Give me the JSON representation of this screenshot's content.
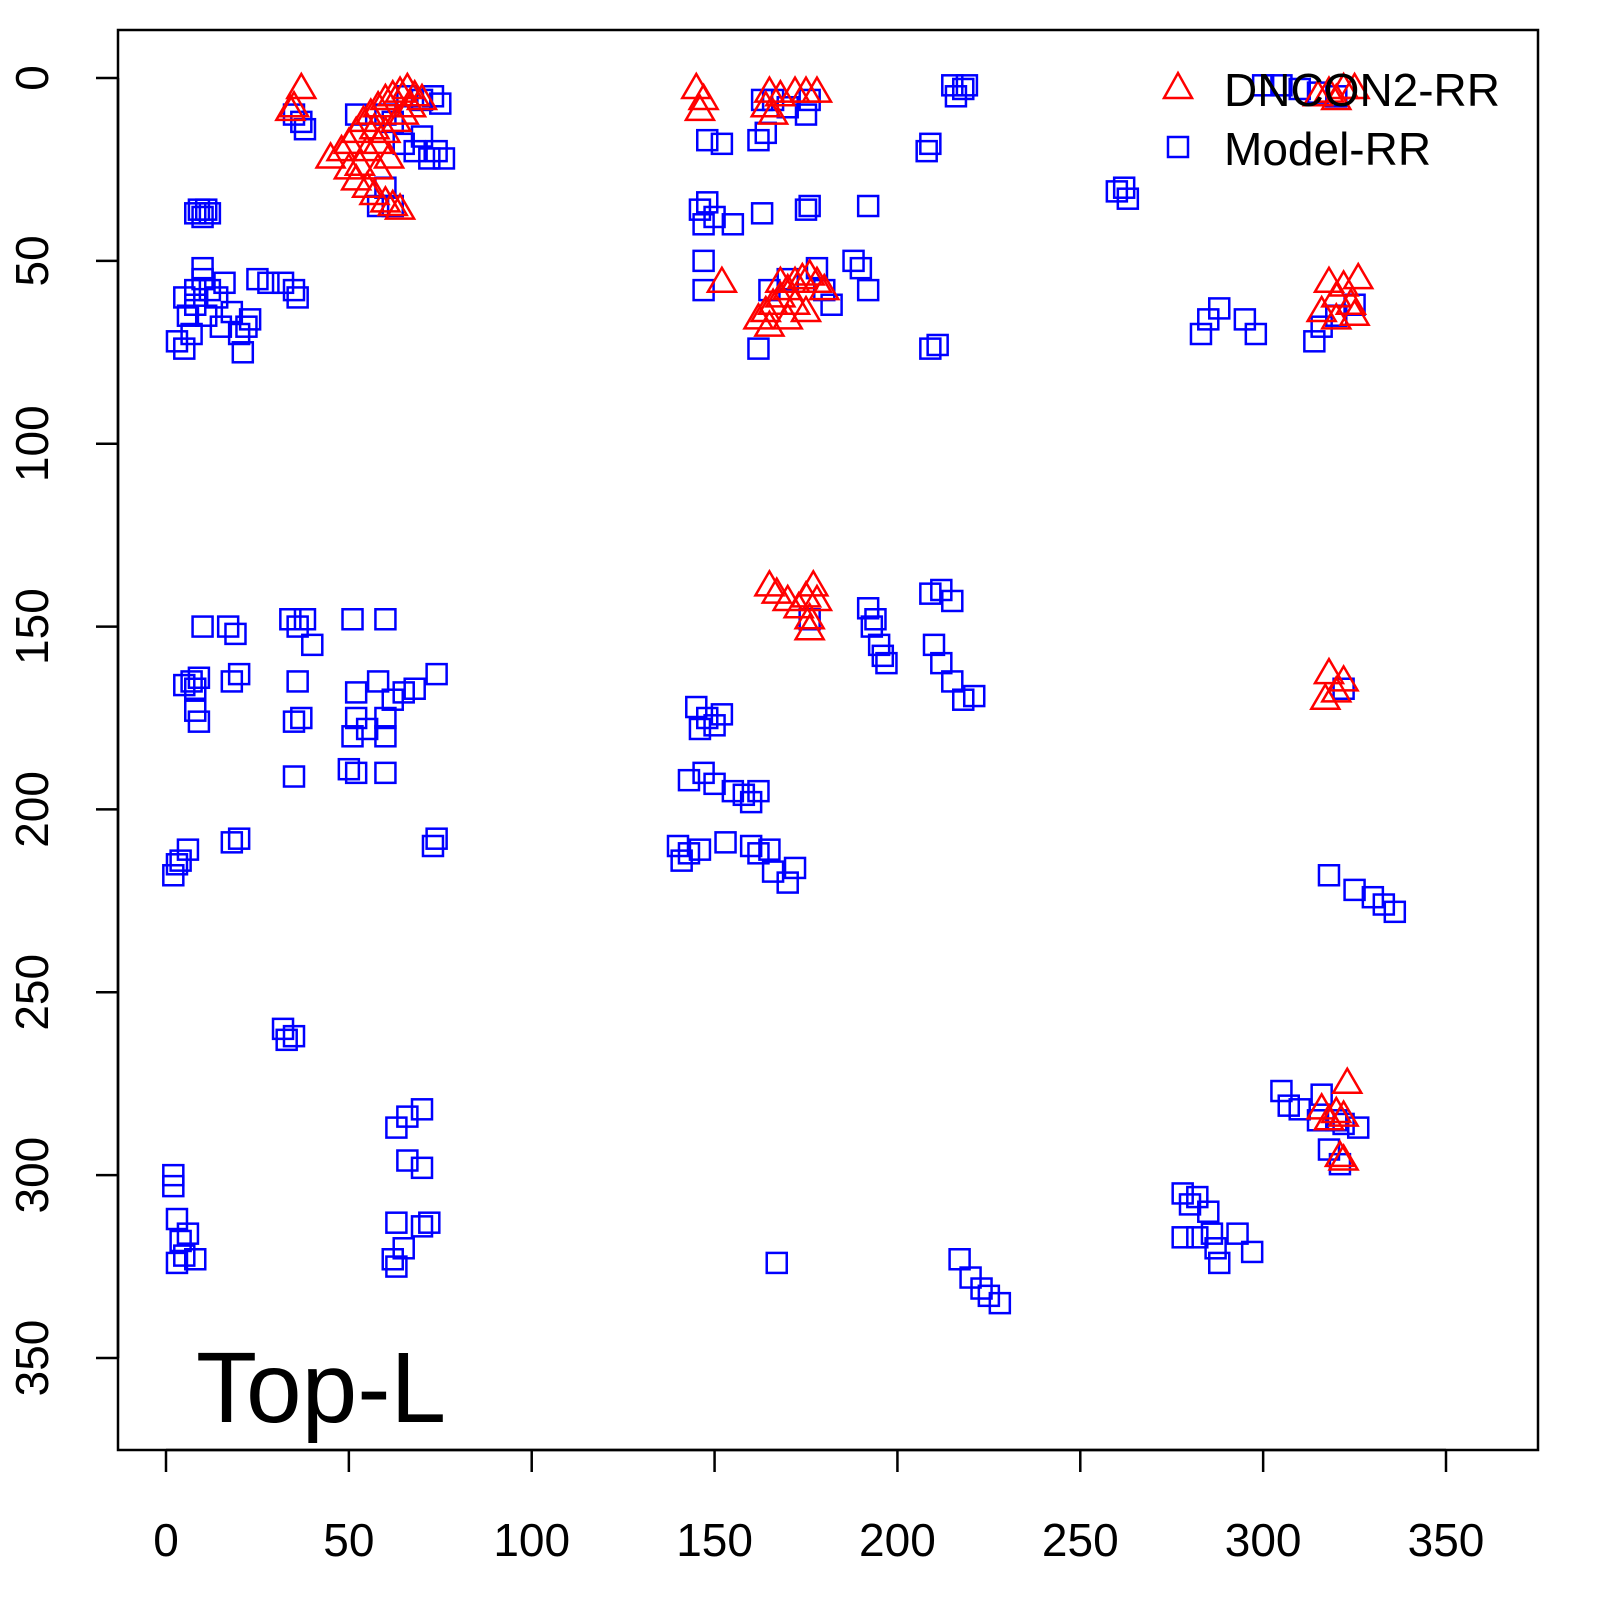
{
  "chart_data": {
    "type": "scatter",
    "title": "",
    "annotation": "Top-L",
    "xlabel": "",
    "ylabel": "",
    "xlim": [
      -13,
      375
    ],
    "ylim": [
      -13,
      375
    ],
    "y_inverted": true,
    "grid": false,
    "legend": {
      "placement": "top-right",
      "entries": [
        "DNCON2-RR",
        "Model-RR"
      ]
    },
    "xticks": [
      0,
      50,
      100,
      150,
      200,
      250,
      300,
      350
    ],
    "yticks": [
      0,
      50,
      100,
      150,
      200,
      250,
      300,
      350
    ],
    "colors": {
      "DNCON2-RR": "#ff0000",
      "Model-RR": "#0000ff"
    },
    "series": [
      {
        "name": "Model-RR",
        "marker": "square",
        "points": [
          [
            35,
            10
          ],
          [
            37,
            12
          ],
          [
            38,
            14
          ],
          [
            60,
            10
          ],
          [
            62,
            12
          ],
          [
            66,
            5
          ],
          [
            70,
            6
          ],
          [
            73,
            5
          ],
          [
            75,
            7
          ],
          [
            65,
            18
          ],
          [
            68,
            20
          ],
          [
            72,
            22
          ],
          [
            74,
            20
          ],
          [
            76,
            22
          ],
          [
            70,
            16
          ],
          [
            60,
            30
          ],
          [
            58,
            35
          ],
          [
            62,
            35
          ],
          [
            52,
            10
          ],
          [
            9,
            36
          ],
          [
            10,
            38
          ],
          [
            11,
            36
          ],
          [
            12,
            37
          ],
          [
            8,
            37
          ],
          [
            5,
            60
          ],
          [
            6,
            65
          ],
          [
            7,
            70
          ],
          [
            8,
            62
          ],
          [
            10,
            55
          ],
          [
            12,
            58
          ],
          [
            14,
            60
          ],
          [
            16,
            56
          ],
          [
            18,
            64
          ],
          [
            20,
            70
          ],
          [
            21,
            75
          ],
          [
            22,
            68
          ],
          [
            3,
            72
          ],
          [
            5,
            74
          ],
          [
            10,
            52
          ],
          [
            15,
            68
          ],
          [
            23,
            66
          ],
          [
            25,
            55
          ],
          [
            28,
            56
          ],
          [
            32,
            56
          ],
          [
            35,
            58
          ],
          [
            36,
            60
          ],
          [
            8,
            58
          ],
          [
            11,
            65
          ],
          [
            146,
            36
          ],
          [
            147,
            40
          ],
          [
            148,
            34
          ],
          [
            150,
            38
          ],
          [
            155,
            40
          ],
          [
            163,
            37
          ],
          [
            175,
            36
          ],
          [
            176,
            35
          ],
          [
            192,
            35
          ],
          [
            147,
            50
          ],
          [
            147,
            58
          ],
          [
            148,
            17
          ],
          [
            152,
            18
          ],
          [
            162,
            17
          ],
          [
            164,
            15
          ],
          [
            163,
            6
          ],
          [
            166,
            6
          ],
          [
            170,
            8
          ],
          [
            175,
            10
          ],
          [
            176,
            6
          ],
          [
            162,
            74
          ],
          [
            165,
            58
          ],
          [
            170,
            55
          ],
          [
            178,
            52
          ],
          [
            180,
            58
          ],
          [
            182,
            62
          ],
          [
            188,
            50
          ],
          [
            190,
            52
          ],
          [
            192,
            58
          ],
          [
            208,
            20
          ],
          [
            209,
            18
          ],
          [
            209,
            74
          ],
          [
            211,
            73
          ],
          [
            216,
            5
          ],
          [
            218,
            3
          ],
          [
            215,
            2
          ],
          [
            219,
            2
          ],
          [
            262,
            30
          ],
          [
            263,
            33
          ],
          [
            260,
            31
          ],
          [
            300,
            2
          ],
          [
            305,
            2
          ],
          [
            310,
            3
          ],
          [
            315,
            4
          ],
          [
            320,
            5
          ],
          [
            283,
            70
          ],
          [
            285,
            66
          ],
          [
            288,
            63
          ],
          [
            295,
            66
          ],
          [
            298,
            70
          ],
          [
            314,
            72
          ],
          [
            316,
            68
          ],
          [
            320,
            65
          ],
          [
            325,
            62
          ],
          [
            7,
            165
          ],
          [
            8,
            167
          ],
          [
            9,
            164
          ],
          [
            5,
            166
          ],
          [
            8,
            173
          ],
          [
            9,
            176
          ],
          [
            10,
            150
          ],
          [
            17,
            150
          ],
          [
            19,
            152
          ],
          [
            18,
            165
          ],
          [
            20,
            163
          ],
          [
            34,
            148
          ],
          [
            36,
            150
          ],
          [
            38,
            148
          ],
          [
            40,
            155
          ],
          [
            35,
            176
          ],
          [
            37,
            175
          ],
          [
            36,
            165
          ],
          [
            51,
            148
          ],
          [
            60,
            148
          ],
          [
            52,
            168
          ],
          [
            52,
            175
          ],
          [
            51,
            180
          ],
          [
            55,
            178
          ],
          [
            60,
            175
          ],
          [
            62,
            170
          ],
          [
            65,
            168
          ],
          [
            68,
            167
          ],
          [
            60,
            180
          ],
          [
            58,
            165
          ],
          [
            74,
            163
          ],
          [
            50,
            189
          ],
          [
            52,
            190
          ],
          [
            60,
            190
          ],
          [
            35,
            191
          ],
          [
            73,
            210
          ],
          [
            74,
            208
          ],
          [
            18,
            209
          ],
          [
            20,
            208
          ],
          [
            6,
            211
          ],
          [
            4,
            214
          ],
          [
            2,
            218
          ],
          [
            3,
            215
          ],
          [
            145,
            172
          ],
          [
            146,
            178
          ],
          [
            148,
            175
          ],
          [
            150,
            177
          ],
          [
            152,
            174
          ],
          [
            143,
            192
          ],
          [
            147,
            190
          ],
          [
            150,
            193
          ],
          [
            155,
            195
          ],
          [
            158,
            196
          ],
          [
            160,
            198
          ],
          [
            162,
            195
          ],
          [
            140,
            210
          ],
          [
            141,
            214
          ],
          [
            143,
            212
          ],
          [
            146,
            211
          ],
          [
            153,
            209
          ],
          [
            160,
            210
          ],
          [
            162,
            212
          ],
          [
            165,
            211
          ],
          [
            166,
            217
          ],
          [
            170,
            220
          ],
          [
            172,
            216
          ],
          [
            192,
            145
          ],
          [
            193,
            150
          ],
          [
            195,
            155
          ],
          [
            196,
            158
          ],
          [
            197,
            160
          ],
          [
            194,
            148
          ],
          [
            209,
            141
          ],
          [
            212,
            140
          ],
          [
            215,
            143
          ],
          [
            210,
            155
          ],
          [
            212,
            160
          ],
          [
            215,
            165
          ],
          [
            218,
            170
          ],
          [
            221,
            169
          ],
          [
            176,
            148
          ],
          [
            322,
            167
          ],
          [
            318,
            218
          ],
          [
            325,
            222
          ],
          [
            330,
            224
          ],
          [
            333,
            226
          ],
          [
            336,
            228
          ],
          [
            32,
            260
          ],
          [
            33,
            263
          ],
          [
            35,
            262
          ],
          [
            63,
            287
          ],
          [
            66,
            284
          ],
          [
            70,
            282
          ],
          [
            66,
            296
          ],
          [
            70,
            298
          ],
          [
            63,
            313
          ],
          [
            70,
            314
          ],
          [
            72,
            313
          ],
          [
            62,
            323
          ],
          [
            65,
            320
          ],
          [
            63,
            325
          ],
          [
            2,
            300
          ],
          [
            2,
            303
          ],
          [
            3,
            312
          ],
          [
            4,
            318
          ],
          [
            5,
            322
          ],
          [
            6,
            316
          ],
          [
            3,
            324
          ],
          [
            8,
            323
          ],
          [
            167,
            324
          ],
          [
            217,
            323
          ],
          [
            220,
            328
          ],
          [
            223,
            331
          ],
          [
            225,
            333
          ],
          [
            228,
            335
          ],
          [
            278,
            305
          ],
          [
            280,
            308
          ],
          [
            282,
            306
          ],
          [
            285,
            310
          ],
          [
            286,
            316
          ],
          [
            287,
            320
          ],
          [
            288,
            324
          ],
          [
            282,
            317
          ],
          [
            293,
            316
          ],
          [
            297,
            321
          ],
          [
            278,
            317
          ],
          [
            305,
            277
          ],
          [
            307,
            281
          ],
          [
            310,
            282
          ],
          [
            316,
            278
          ],
          [
            320,
            285
          ],
          [
            322,
            286
          ],
          [
            326,
            287
          ],
          [
            318,
            293
          ],
          [
            321,
            297
          ],
          [
            315,
            285
          ]
        ]
      },
      {
        "name": "DNCON2-RR",
        "marker": "triangle",
        "points": [
          [
            37,
            3
          ],
          [
            35,
            8
          ],
          [
            34,
            9
          ],
          [
            45,
            22
          ],
          [
            48,
            20
          ],
          [
            50,
            18
          ],
          [
            52,
            15
          ],
          [
            54,
            12
          ],
          [
            56,
            10
          ],
          [
            58,
            8
          ],
          [
            60,
            6
          ],
          [
            62,
            5
          ],
          [
            64,
            4
          ],
          [
            66,
            3
          ],
          [
            68,
            5
          ],
          [
            70,
            6
          ],
          [
            50,
            25
          ],
          [
            52,
            28
          ],
          [
            55,
            30
          ],
          [
            57,
            32
          ],
          [
            60,
            34
          ],
          [
            62,
            35
          ],
          [
            64,
            36
          ],
          [
            55,
            20
          ],
          [
            58,
            18
          ],
          [
            60,
            15
          ],
          [
            63,
            12
          ],
          [
            65,
            10
          ],
          [
            67,
            8
          ],
          [
            58,
            25
          ],
          [
            61,
            22
          ],
          [
            53,
            24
          ],
          [
            57,
            14
          ],
          [
            145,
            3
          ],
          [
            147,
            6
          ],
          [
            146,
            9
          ],
          [
            165,
            4
          ],
          [
            168,
            5
          ],
          [
            172,
            4
          ],
          [
            175,
            4
          ],
          [
            178,
            4
          ],
          [
            164,
            8
          ],
          [
            166,
            10
          ],
          [
            152,
            56
          ],
          [
            162,
            66
          ],
          [
            164,
            64
          ],
          [
            166,
            62
          ],
          [
            168,
            60
          ],
          [
            170,
            58
          ],
          [
            172,
            56
          ],
          [
            174,
            55
          ],
          [
            176,
            54
          ],
          [
            178,
            56
          ],
          [
            180,
            58
          ],
          [
            165,
            68
          ],
          [
            170,
            66
          ],
          [
            175,
            64
          ],
          [
            172,
            62
          ],
          [
            168,
            56
          ],
          [
            165,
            139
          ],
          [
            167,
            141
          ],
          [
            170,
            143
          ],
          [
            173,
            145
          ],
          [
            175,
            142
          ],
          [
            177,
            139
          ],
          [
            178,
            143
          ],
          [
            176,
            148
          ],
          [
            176,
            151
          ],
          [
            318,
            56
          ],
          [
            320,
            60
          ],
          [
            322,
            57
          ],
          [
            324,
            62
          ],
          [
            326,
            55
          ],
          [
            316,
            64
          ],
          [
            320,
            66
          ],
          [
            325,
            65
          ],
          [
            318,
            4
          ],
          [
            320,
            6
          ],
          [
            322,
            3
          ],
          [
            315,
            5
          ],
          [
            325,
            3
          ],
          [
            318,
            163
          ],
          [
            322,
            165
          ],
          [
            317,
            170
          ],
          [
            320,
            168
          ],
          [
            323,
            275
          ],
          [
            316,
            282
          ],
          [
            318,
            285
          ],
          [
            320,
            283
          ],
          [
            322,
            284
          ],
          [
            322,
            296
          ],
          [
            321,
            295
          ]
        ]
      }
    ]
  }
}
